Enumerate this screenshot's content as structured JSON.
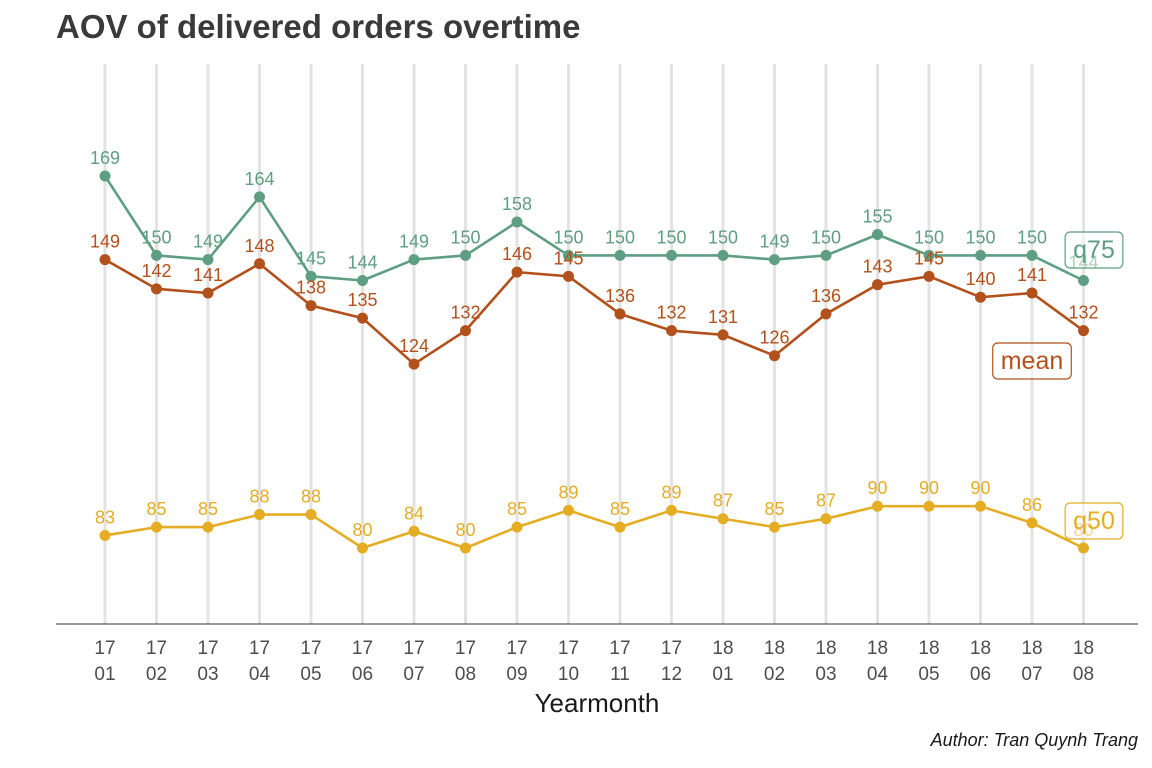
{
  "title": "AOV of delivered orders overtime",
  "caption": "Author: Tran Quynh Trang",
  "chart_data": {
    "type": "line",
    "title": "AOV of delivered orders overtime",
    "xlabel": "Yearmonth",
    "ylabel": "",
    "categories": [
      "17 01",
      "17 02",
      "17 03",
      "17 04",
      "17 05",
      "17 06",
      "17 07",
      "17 08",
      "17 09",
      "17 10",
      "17 11",
      "17 12",
      "18 01",
      "18 02",
      "18 03",
      "18 04",
      "18 05",
      "18 06",
      "18 07",
      "18 08"
    ],
    "tick_labels": [
      [
        "17",
        "01"
      ],
      [
        "17",
        "02"
      ],
      [
        "17",
        "03"
      ],
      [
        "17",
        "04"
      ],
      [
        "17",
        "05"
      ],
      [
        "17",
        "06"
      ],
      [
        "17",
        "07"
      ],
      [
        "17",
        "08"
      ],
      [
        "17",
        "09"
      ],
      [
        "17",
        "10"
      ],
      [
        "17",
        "11"
      ],
      [
        "17",
        "12"
      ],
      [
        "18",
        "01"
      ],
      [
        "18",
        "02"
      ],
      [
        "18",
        "03"
      ],
      [
        "18",
        "04"
      ],
      [
        "18",
        "05"
      ],
      [
        "18",
        "06"
      ],
      [
        "18",
        "07"
      ],
      [
        "18",
        "08"
      ]
    ],
    "ylim": [
      65,
      180
    ],
    "grid": "vertical",
    "legend": "none",
    "series": [
      {
        "name": "q75",
        "color": "#5e9e82",
        "values": [
          169,
          150,
          149,
          164,
          145,
          144,
          149,
          150,
          158,
          150,
          150,
          150,
          150,
          149,
          150,
          155,
          150,
          150,
          150,
          144
        ],
        "labels": [
          "169",
          "150",
          "149",
          "164",
          "145",
          "144",
          "149",
          "150",
          "158",
          "150",
          "150",
          "150",
          "150",
          "149",
          "150",
          "155",
          "150",
          "150",
          "150",
          "144"
        ]
      },
      {
        "name": "mean",
        "color": "#b2511c",
        "values": [
          149,
          142,
          141,
          148,
          138,
          135,
          124,
          132,
          146,
          145,
          136,
          132,
          131,
          126,
          136,
          143,
          145,
          140,
          141,
          132
        ],
        "labels": [
          "149",
          "142",
          "141",
          "148",
          "138",
          "135",
          "124",
          "132",
          "146",
          "145",
          "136",
          "132",
          "131",
          "126",
          "136",
          "143",
          "145",
          "140",
          "141",
          "132"
        ]
      },
      {
        "name": "q50",
        "color": "#e4ad24",
        "values": [
          83,
          85,
          85,
          88,
          88,
          80,
          84,
          80,
          85,
          89,
          85,
          89,
          87,
          85,
          87,
          90,
          90,
          90,
          86,
          80
        ],
        "labels": [
          "83",
          "85",
          "85",
          "88",
          "88",
          "80",
          "84",
          "80",
          "85",
          "89",
          "85",
          "89",
          "87",
          "85",
          "87",
          "90",
          "90",
          "90",
          "86",
          "80"
        ]
      }
    ]
  }
}
